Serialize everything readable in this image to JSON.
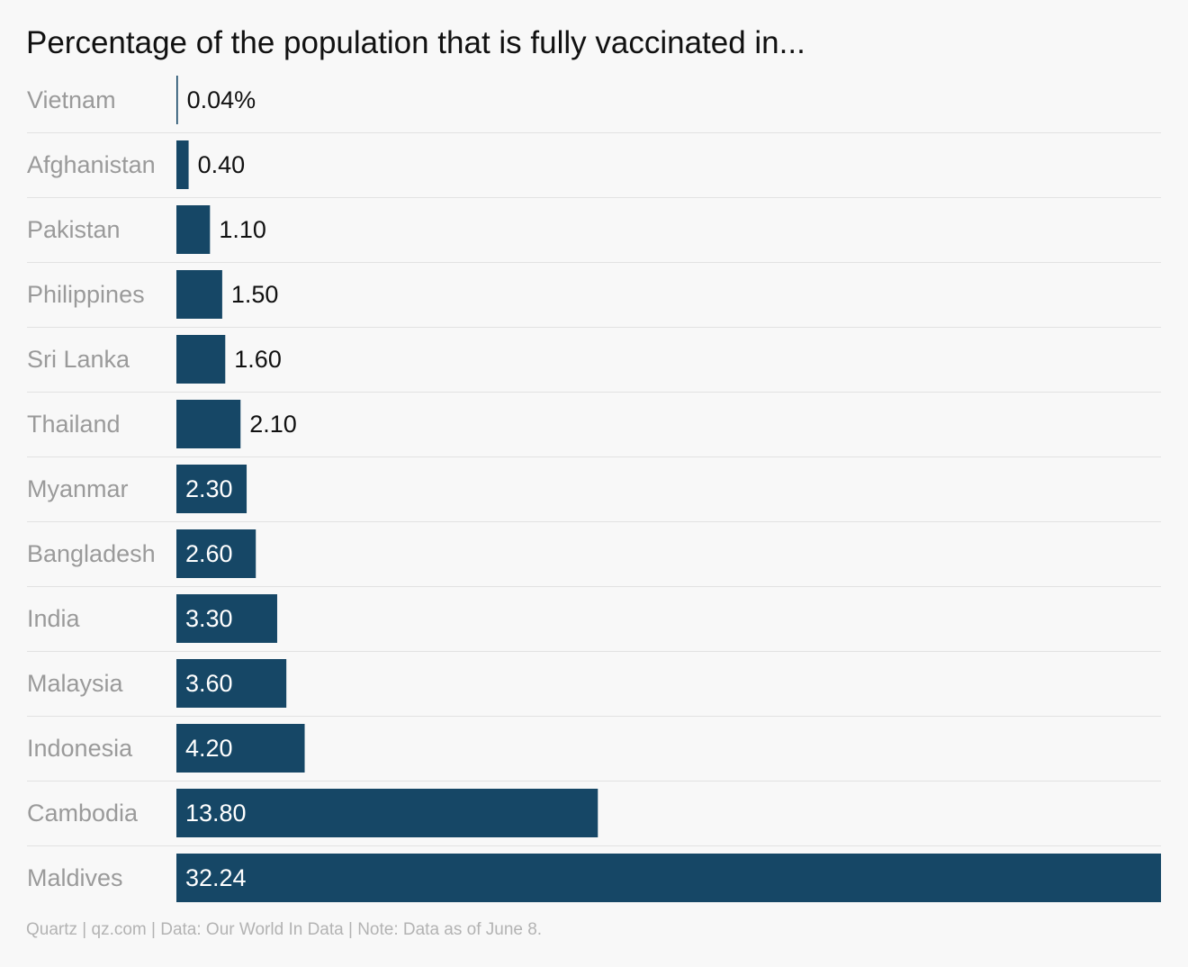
{
  "chart_data": {
    "type": "bar",
    "orientation": "horizontal",
    "title": "Percentage of the population that is fully vaccinated in...",
    "categories": [
      "Vietnam",
      "Afghanistan",
      "Pakistan",
      "Philippines",
      "Sri Lanka",
      "Thailand",
      "Myanmar",
      "Bangladesh",
      "India",
      "Malaysia",
      "Indonesia",
      "Cambodia",
      "Maldives"
    ],
    "values": [
      0.04,
      0.4,
      1.1,
      1.5,
      1.6,
      2.1,
      2.3,
      2.6,
      3.3,
      3.6,
      4.2,
      13.8,
      32.24
    ],
    "value_labels": [
      "0.04%",
      "0.40",
      "1.10",
      "1.50",
      "1.60",
      "2.10",
      "2.30",
      "2.60",
      "3.30",
      "3.60",
      "4.20",
      "13.80",
      "32.24"
    ],
    "xlim": [
      0,
      32.24
    ],
    "grid": false,
    "legend": "none"
  },
  "footer": {
    "source": "Quartz | qz.com | Data: Our World In Data | Note: Data as of June 8."
  },
  "colors": {
    "bar": "#164766",
    "category_text": "#9a9a9a",
    "label_inside": "#ffffff",
    "label_outside": "#111111",
    "separator": "#e2e2e2"
  }
}
